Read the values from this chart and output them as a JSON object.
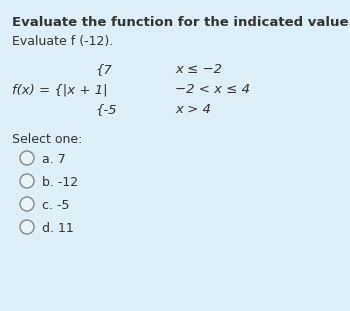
{
  "bg_color": "#ddeef6",
  "title": "Evaluate the function for the indicated value.",
  "subtitle": "Evaluate f (-12).",
  "pw_line1_left": "{7",
  "pw_line1_right": "x ≤ −2",
  "pw_line2_left": "f(x) = {|x + 1|",
  "pw_line2_right": "−2 < x ≤ 4",
  "pw_line3_left": "{-5",
  "pw_line3_right": "x > 4",
  "select_label": "Select one:",
  "options": [
    "a. 7",
    "b. -12",
    "c. -5",
    "d. 11"
  ],
  "title_fontsize": 9.5,
  "subtitle_fontsize": 9.0,
  "piecewise_fontsize": 9.5,
  "option_fontsize": 9.0,
  "select_fontsize": 9.0,
  "text_color": "#333333",
  "circle_color": "#888888"
}
